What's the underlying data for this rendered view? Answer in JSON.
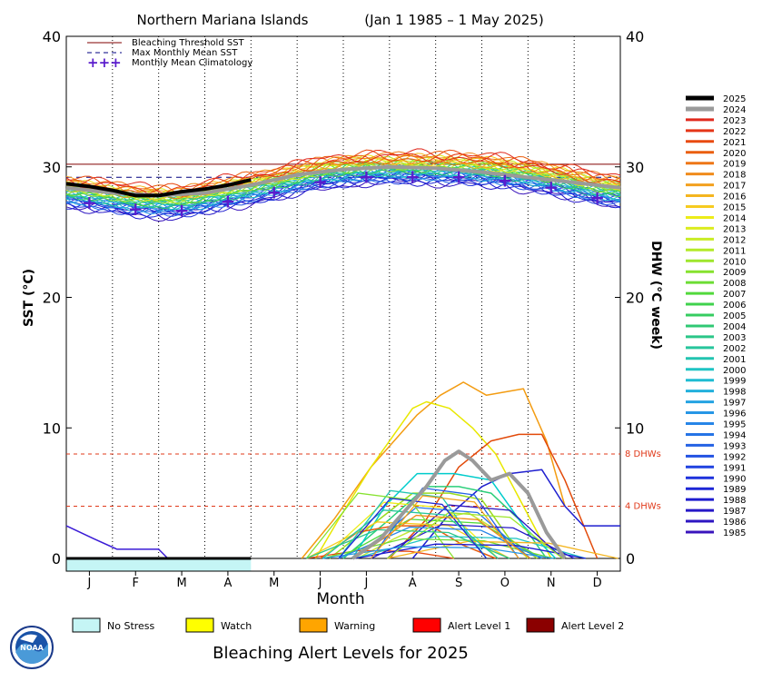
{
  "chart_data": {
    "type": "line",
    "title": "Northern Mariana Islands",
    "title_range": "(Jan 1 1985 – 1 May 2025)",
    "xlabel": "Month",
    "ylabel_left": "SST (°C)",
    "ylabel_right": "DHW (°C week)",
    "months": [
      "J",
      "F",
      "M",
      "A",
      "M",
      "J",
      "J",
      "A",
      "S",
      "O",
      "N",
      "D"
    ],
    "left_ticks": [
      "0",
      "10",
      "20",
      "30",
      "40"
    ],
    "right_ticks": [
      "0",
      "10",
      "20",
      "30",
      "40"
    ],
    "ylim": [
      0,
      40
    ],
    "grid": "vertical dotted month lines",
    "bleaching_threshold_sst": 30.2,
    "max_monthly_mean_sst": 29.2,
    "threshold_lines": [
      {
        "value": 8,
        "label": "8 DHWs"
      },
      {
        "value": 4,
        "label": "4 DHWs"
      }
    ],
    "legend_lines": [
      {
        "label": "Bleaching Threshold SST",
        "color": "#800000"
      },
      {
        "label": "Max Monthly Mean SST",
        "color": "#000080"
      },
      {
        "label": "Monthly Mean Climatology",
        "color": "#5a1ccc"
      }
    ],
    "climatology": {
      "x": [
        0.5,
        1.5,
        2.5,
        3.5,
        4.5,
        5.5,
        6.5,
        7.5,
        8.5,
        9.5,
        10.5,
        11.5
      ],
      "y": [
        27.2,
        26.7,
        26.6,
        27.3,
        28.0,
        28.8,
        29.2,
        29.2,
        29.2,
        28.9,
        28.4,
        27.6
      ]
    },
    "current_year_sst": {
      "name": "2025",
      "x": [
        0,
        0.5,
        1.0,
        1.5,
        2.0,
        2.5,
        3.0,
        3.5,
        4.0
      ],
      "y": [
        28.7,
        28.5,
        28.2,
        27.8,
        27.8,
        28.1,
        28.3,
        28.6,
        29.0
      ]
    },
    "year_2024_sst": {
      "name": "2024",
      "x": [
        0,
        1,
        2,
        3,
        4,
        5,
        6,
        7,
        8,
        9,
        10,
        11,
        12
      ],
      "y": [
        28.4,
        28.0,
        27.8,
        28.0,
        28.6,
        29.4,
        29.8,
        30.0,
        29.9,
        29.6,
        29.2,
        28.8,
        28.4
      ]
    },
    "year_2024_dhw": {
      "name": "2024",
      "x": [
        6.2,
        6.8,
        7.3,
        7.8,
        8.2,
        8.5,
        8.8,
        9.2,
        9.6,
        10.0,
        10.4,
        10.8
      ],
      "y": [
        0.0,
        1.5,
        3.5,
        5.5,
        7.5,
        8.2,
        7.5,
        6.0,
        6.5,
        5.0,
        2.0,
        0.0
      ]
    },
    "dhw_examples": [
      {
        "name": "2017",
        "x": [
          5.1,
          5.8,
          6.6,
          7.6,
          8.1,
          8.6,
          9.1,
          9.9,
          10.4,
          10.8
        ],
        "y": [
          0,
          3,
          7,
          11,
          12.5,
          13.5,
          12.5,
          13.0,
          9,
          4
        ],
        "color": "#f39c12"
      },
      {
        "name": "2014",
        "x": [
          5.4,
          5.9,
          6.6,
          7.5,
          7.8,
          8.3,
          8.8,
          9.3,
          9.9,
          10.5
        ],
        "y": [
          0,
          3,
          7,
          11.5,
          12,
          11.5,
          10,
          8,
          4,
          0
        ],
        "color": "#e8e800"
      },
      {
        "name": "2022",
        "x": [
          7.0,
          7.8,
          8.5,
          9.2,
          9.8,
          10.3,
          10.8,
          11.5
        ],
        "y": [
          0,
          3,
          7,
          9.0,
          9.5,
          9.5,
          6,
          0
        ],
        "color": "#e24a0a"
      },
      {
        "name": "1988",
        "x": [
          7.5,
          8.2,
          9.0,
          9.6,
          10.3,
          10.8,
          11.2,
          11.5,
          12.0
        ],
        "y": [
          0,
          3,
          5.5,
          6.5,
          6.8,
          4,
          2.5,
          2.5,
          2.5
        ],
        "color": "#1f1fcf"
      },
      {
        "name": "2001",
        "x": [
          6.0,
          7.0,
          7.8,
          8.5,
          9.2,
          9.8,
          10.4
        ],
        "y": [
          0,
          3,
          5.5,
          5.5,
          5.0,
          3.0,
          0
        ],
        "color": "#2bcf7a"
      },
      {
        "name": "1996",
        "x": [
          6.2,
          6.9,
          7.6,
          8.4,
          9.2,
          9.9,
          10.6
        ],
        "y": [
          0,
          4,
          6.5,
          6.5,
          6.0,
          2.5,
          0
        ],
        "color": "#00cccc"
      },
      {
        "name": "2010",
        "x": [
          5.7,
          6.6,
          7.5,
          8.3,
          9.0,
          9.6,
          10.2
        ],
        "y": [
          0,
          2.5,
          5,
          5,
          4.5,
          1.5,
          0
        ],
        "color": "#9adc20"
      },
      {
        "name": "2013",
        "x": [
          6.3,
          7.1,
          8.0,
          8.7,
          9.4,
          10.0
        ],
        "y": [
          0,
          1.5,
          3,
          3.5,
          2,
          0
        ],
        "color": "#c6e63a"
      },
      {
        "name": "2020",
        "x": [
          5.5,
          6.3,
          7.1,
          7.9,
          8.6,
          9.3
        ],
        "y": [
          0,
          2,
          2.5,
          2.5,
          1,
          0
        ],
        "color": "#e85c0e"
      },
      {
        "name": "1985",
        "x": [
          0,
          0.6,
          1.1,
          1.8,
          2.0,
          2.2
        ],
        "y": [
          2.5,
          1.5,
          0.7,
          0.7,
          0.7,
          0
        ],
        "color": "#3a1bd6"
      }
    ],
    "legend_years": [
      "2025",
      "2024",
      "2023",
      "2022",
      "2021",
      "2020",
      "2019",
      "2018",
      "2017",
      "2016",
      "2015",
      "2014",
      "2013",
      "2012",
      "2011",
      "2010",
      "2009",
      "2008",
      "2007",
      "2006",
      "2005",
      "2004",
      "2003",
      "2002",
      "2001",
      "2000",
      "1999",
      "1998",
      "1997",
      "1996",
      "1995",
      "1994",
      "1993",
      "1992",
      "1991",
      "1990",
      "1989",
      "1988",
      "1987",
      "1986",
      "1985"
    ],
    "legend_year_colors": [
      "#000000",
      "#9a9a9a",
      "#e0291e",
      "#e53517",
      "#e84a10",
      "#ea5e0e",
      "#ee7616",
      "#f08c1c",
      "#f2a01e",
      "#f4b51f",
      "#f6cb20",
      "#ecec19",
      "#dbec1f",
      "#c8ec25",
      "#b4ea28",
      "#9ee62c",
      "#86e22f",
      "#6cdd34",
      "#52d93b",
      "#3fd24d",
      "#35cc60",
      "#30c874",
      "#2bc688",
      "#27c59c",
      "#22c4b0",
      "#1ec4c4",
      "#1fbcd2",
      "#22b0dc",
      "#24a3e2",
      "#2696e6",
      "#2785e8",
      "#2674e6",
      "#2462e4",
      "#2252e2",
      "#2042e0",
      "#1e32dc",
      "#1d26d6",
      "#1e1ccf",
      "#2618c8",
      "#2d16c2",
      "#3a14bc"
    ],
    "alert_legend": [
      {
        "label": "No Stress",
        "color": "#c5f5f5"
      },
      {
        "label": "Watch",
        "color": "#ffff00"
      },
      {
        "label": "Warning",
        "color": "#ffa500"
      },
      {
        "label": "Alert Level 1",
        "color": "#ff0000"
      },
      {
        "label": "Alert Level 2",
        "color": "#8b0000"
      }
    ],
    "alert_bar": {
      "status": "No Stress",
      "color": "#c5f5f5",
      "end_month": 4.0
    },
    "footer_title": "Bleaching Alert Levels for 2025",
    "logo_text": "NOAA"
  }
}
